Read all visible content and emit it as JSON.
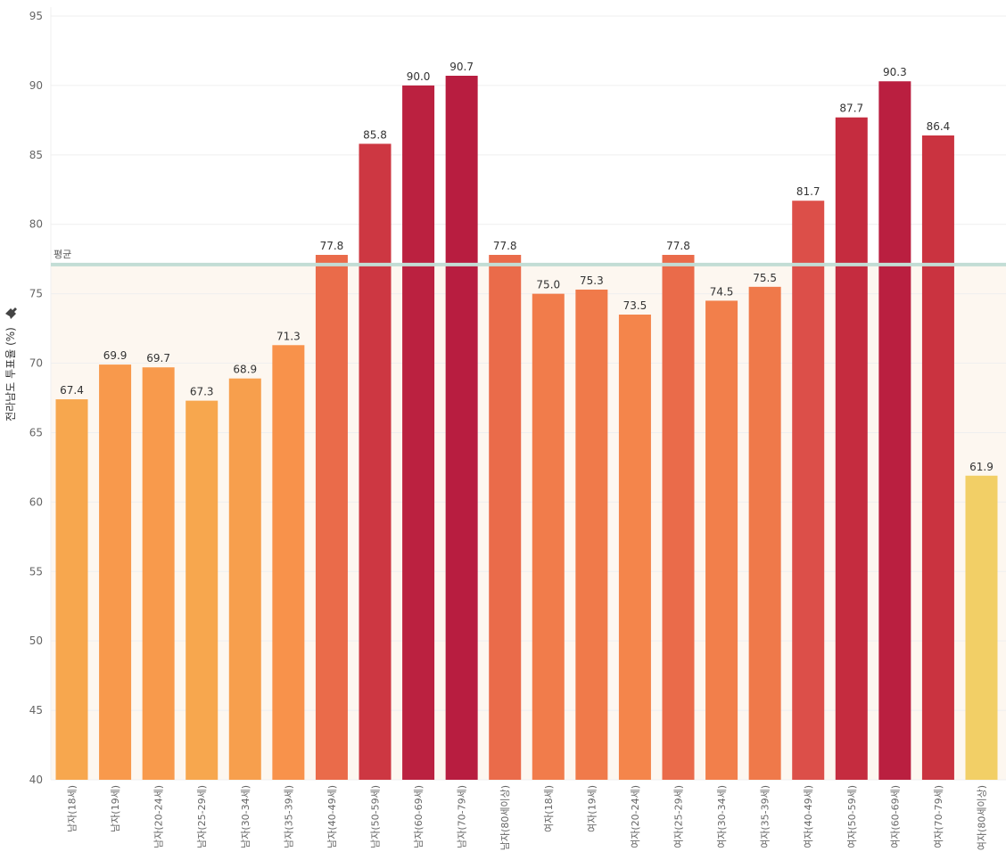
{
  "chart_data": {
    "type": "bar",
    "title": "",
    "xlabel": "",
    "ylabel": "전라남도 투표율 (%)",
    "ylim": [
      40,
      95
    ],
    "yticks": [
      40,
      45,
      50,
      55,
      60,
      65,
      70,
      75,
      80,
      85,
      90,
      95
    ],
    "grid": true,
    "categories": [
      "남자(18세)",
      "남자(19세)",
      "남자(20-24세)",
      "남자(25-29세)",
      "남자(30-34세)",
      "남자(35-39세)",
      "남자(40-49세)",
      "남자(50-59세)",
      "남자(60-69세)",
      "남자(70-79세)",
      "남자(80세이상)",
      "여자(18세)",
      "여자(19세)",
      "여자(20-24세)",
      "여자(25-29세)",
      "여자(30-34세)",
      "여자(35-39세)",
      "여자(40-49세)",
      "여자(50-59세)",
      "여자(60-69세)",
      "여자(70-79세)",
      "여자(80세이상)"
    ],
    "values": [
      67.4,
      69.9,
      69.7,
      67.3,
      68.9,
      71.3,
      77.8,
      85.8,
      90.0,
      90.7,
      77.8,
      75.0,
      75.3,
      73.5,
      77.8,
      74.5,
      75.5,
      81.7,
      87.7,
      90.3,
      86.4,
      61.9
    ],
    "value_labels": [
      "67.4",
      "69.9",
      "69.7",
      "67.3",
      "68.9",
      "71.3",
      "77.8",
      "85.8",
      "90.0",
      "90.7",
      "77.8",
      "75.0",
      "75.3",
      "73.5",
      "77.8",
      "74.5",
      "75.5",
      "81.7",
      "87.7",
      "90.3",
      "86.4",
      "61.9"
    ],
    "reference_line": {
      "label": "평균",
      "value": 77.1,
      "color": "#c2ddd5"
    },
    "reference_band_color": "#fdf7f0",
    "color_scale": [
      {
        "stop": 61.9,
        "color": "#f2cf66"
      },
      {
        "stop": 67.0,
        "color": "#f7a94e"
      },
      {
        "stop": 72.0,
        "color": "#f88e4b"
      },
      {
        "stop": 78.0,
        "color": "#e96a4a"
      },
      {
        "stop": 83.0,
        "color": "#d84648"
      },
      {
        "stop": 87.0,
        "color": "#c8303f"
      },
      {
        "stop": 90.7,
        "color": "#b81d40"
      }
    ]
  }
}
